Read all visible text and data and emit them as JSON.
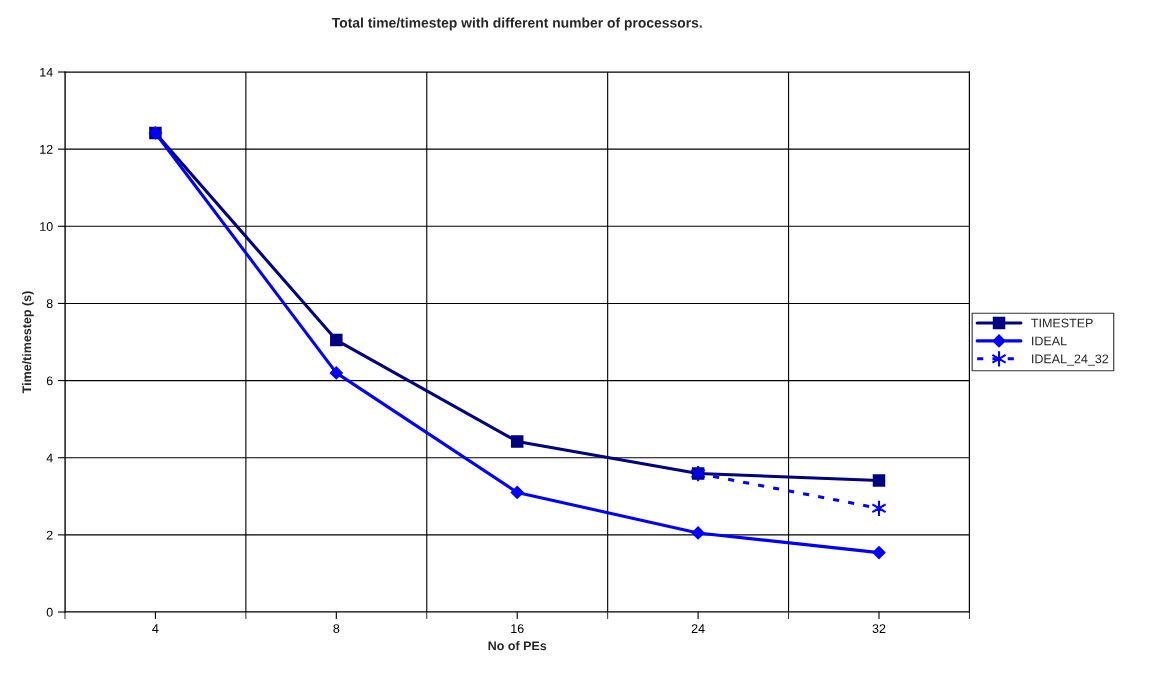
{
  "chart_data": {
    "type": "line",
    "title": "Total time/timestep with different number of processors.",
    "xlabel": "No of PEs",
    "ylabel": "Time/timestep (s)",
    "categories": [
      "4",
      "8",
      "16",
      "24",
      "32"
    ],
    "series": [
      {
        "name": "TIMESTEP",
        "color": "#000080",
        "marker": "square",
        "line_style": "solid",
        "values": [
          12.42,
          7.05,
          4.42,
          3.59,
          3.41
        ]
      },
      {
        "name": "IDEAL",
        "color": "#0000ff",
        "marker": "diamond",
        "line_style": "solid",
        "values": [
          12.42,
          6.2,
          3.1,
          2.05,
          1.54
        ]
      },
      {
        "name": "IDEAL_24_32",
        "color": "#0000ff",
        "marker": "cross",
        "line_style": "dashed",
        "values": [
          null,
          null,
          null,
          3.59,
          2.69
        ]
      }
    ],
    "ylim": [
      0,
      14
    ],
    "yticks": [
      0,
      2,
      4,
      6,
      8,
      10,
      12,
      14
    ],
    "grid": true,
    "legend": "right"
  }
}
